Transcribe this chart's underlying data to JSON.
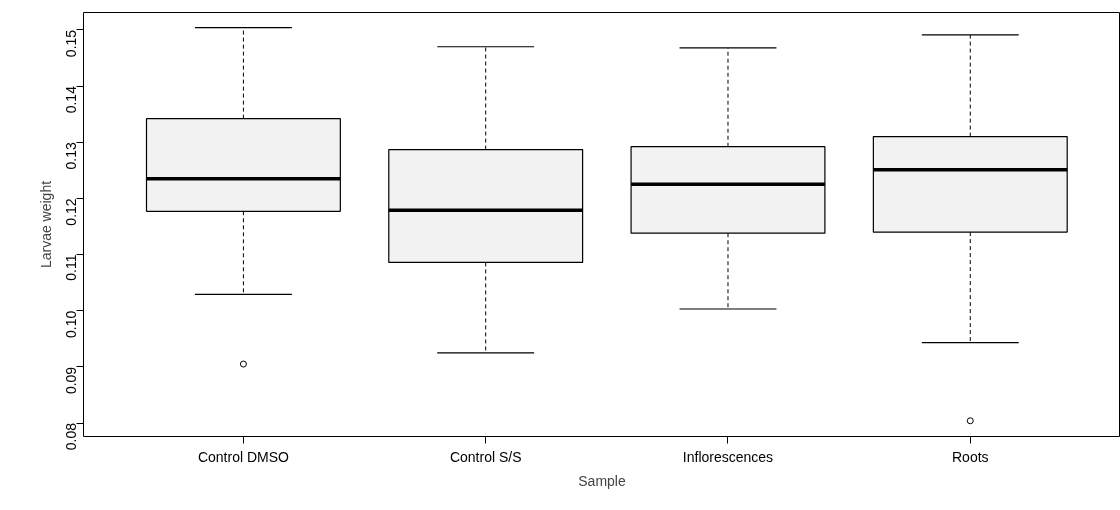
{
  "chart_data": {
    "type": "box",
    "xlabel": "Sample",
    "ylabel": "Larvae weight",
    "color": "#f2f2f2",
    "categories": [
      "Control DMSO",
      "Control S/S",
      "Inflorescences",
      "Roots"
    ],
    "boxes": [
      {
        "low": 0.1029,
        "q1": 0.1177,
        "median": 0.1235,
        "q3": 0.1342,
        "high": 0.1504,
        "outliers": [
          0.0905
        ]
      },
      {
        "low": 0.0925,
        "q1": 0.1086,
        "median": 0.1179,
        "q3": 0.1287,
        "high": 0.147
      },
      {
        "low": 0.1003,
        "q1": 0.1138,
        "median": 0.1225,
        "q3": 0.1292,
        "high": 0.1468
      },
      {
        "low": 0.0943,
        "q1": 0.114,
        "median": 0.1251,
        "q3": 0.131,
        "high": 0.1491,
        "outliers": [
          0.0804
        ]
      }
    ],
    "ylim": [
      0.0776,
      0.1531
    ],
    "yticks": [
      0.08,
      0.09,
      {
        "value": 0.1,
        "label": "0.10"
      },
      0.11,
      0.12,
      0.13,
      0.14,
      0.15
    ]
  }
}
